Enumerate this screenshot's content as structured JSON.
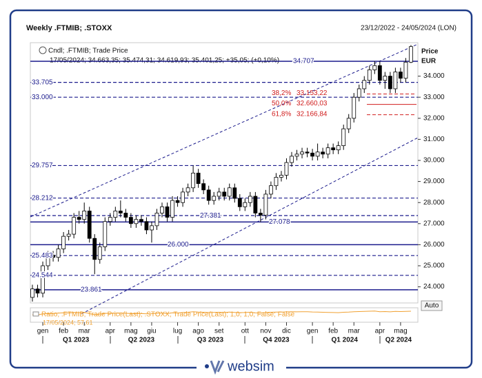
{
  "chart_data": {
    "type": "candlestick",
    "title": "Weekly .FTMIB; .STOXX",
    "date_range": "23/12/2022 - 24/05/2024 (LON)",
    "legend_title": "Cndl; .FTMIB; Trade Price",
    "legend_values": "17/05/2024; 34.663,35; 35.474,31; 34.619,93; 35.401,25; +35,05; (+0,10%)",
    "axis_label": "Price",
    "currency": "EUR",
    "auto_button": "Auto",
    "up_color": "#ffffff",
    "down_color": "#000000",
    "wick_color": "#000000",
    "open": [
      23500,
      23900,
      23700,
      25000,
      25500,
      25400,
      25800,
      26400,
      26500,
      27300,
      27200,
      27600,
      26300,
      25300,
      25900,
      27100,
      27300,
      27600,
      27500,
      27300,
      27000,
      27200,
      27100,
      26700,
      26900,
      27500,
      27800,
      27300,
      28100,
      28000,
      28500,
      28700,
      29400,
      28900,
      28600,
      28100,
      28300,
      28500,
      28300,
      28700,
      28200,
      27800,
      28000,
      28300,
      27500,
      27400,
      28400,
      28800,
      29200,
      29300,
      29900,
      30200,
      30300,
      30400,
      30350,
      30200,
      30400,
      30300,
      30600,
      30500,
      30700,
      31500,
      32000,
      33000,
      33400,
      33800,
      34300,
      34500,
      33800,
      34000,
      33400,
      34200,
      33900,
      34663.35
    ],
    "high": [
      24100,
      24100,
      25200,
      25700,
      25700,
      26000,
      26600,
      26700,
      27500,
      27600,
      28000,
      27800,
      26500,
      26100,
      27300,
      27500,
      27800,
      28100,
      27700,
      27500,
      27400,
      27400,
      27300,
      27100,
      27700,
      28000,
      28000,
      28300,
      28300,
      28700,
      28900,
      29757,
      29600,
      29100,
      28800,
      28500,
      28700,
      28700,
      28900,
      28900,
      28400,
      28200,
      28500,
      28500,
      27700,
      28600,
      29000,
      29400,
      29500,
      30100,
      30400,
      30500,
      30600,
      30600,
      30550,
      30800,
      30600,
      30800,
      30800,
      30900,
      31700,
      32200,
      33200,
      33600,
      34000,
      34500,
      34707,
      34700,
      34200,
      34200,
      34400,
      34400,
      34860,
      35474.31
    ],
    "low": [
      23300,
      23500,
      23500,
      24800,
      25200,
      25200,
      25600,
      26200,
      26300,
      27000,
      27000,
      26100,
      24600,
      25100,
      25700,
      26900,
      27100,
      27300,
      27100,
      26800,
      26800,
      26900,
      26500,
      26100,
      26700,
      27300,
      27100,
      27100,
      27800,
      27800,
      28300,
      28500,
      28700,
      28400,
      27900,
      27900,
      28100,
      28100,
      28100,
      28000,
      27600,
      27600,
      27800,
      27300,
      27078,
      27200,
      28200,
      28600,
      29000,
      29100,
      29700,
      30000,
      30100,
      30150,
      30000,
      30000,
      30100,
      30100,
      30300,
      30300,
      30500,
      31300,
      31800,
      32800,
      33200,
      33600,
      34100,
      33600,
      33400,
      33200,
      33200,
      33700,
      33700,
      34619.93
    ],
    "close": [
      23900,
      23700,
      25000,
      25500,
      25400,
      25800,
      26400,
      26500,
      27300,
      27200,
      27600,
      26300,
      25300,
      25900,
      27100,
      27300,
      27600,
      27500,
      27300,
      27000,
      27200,
      27100,
      26700,
      26900,
      27500,
      27800,
      27300,
      28100,
      28000,
      28500,
      28700,
      29400,
      28900,
      28600,
      28100,
      28300,
      28500,
      28300,
      28700,
      28200,
      27800,
      28000,
      28300,
      27500,
      27400,
      28400,
      28800,
      29200,
      29300,
      29900,
      30200,
      30300,
      30400,
      30350,
      30200,
      30400,
      30300,
      30600,
      30500,
      30700,
      31500,
      32000,
      33000,
      33400,
      33800,
      34300,
      34500,
      33800,
      34000,
      33400,
      34200,
      33900,
      34663.35,
      35401.25
    ],
    "ylim": [
      23235,
      35588
    ],
    "yticks": [
      {
        "value": 24000,
        "label": "24.000"
      },
      {
        "value": 25000,
        "label": "25.000"
      },
      {
        "value": 26000,
        "label": "26.000"
      },
      {
        "value": 27000,
        "label": "27.000"
      },
      {
        "value": 28000,
        "label": "28.000"
      },
      {
        "value": 29000,
        "label": "29.000"
      },
      {
        "value": 30000,
        "label": "30.000"
      },
      {
        "value": 31000,
        "label": "31.000"
      },
      {
        "value": 32000,
        "label": "32.000"
      },
      {
        "value": 33000,
        "label": "33.000"
      },
      {
        "value": 34000,
        "label": "34.000"
      }
    ],
    "month_ticks": [
      {
        "value": 2,
        "label": "gen"
      },
      {
        "value": 6,
        "label": "feb"
      },
      {
        "value": 10,
        "label": "mar"
      },
      {
        "value": 15,
        "label": "apr"
      },
      {
        "value": 19,
        "label": "mag"
      },
      {
        "value": 23,
        "label": "giu"
      },
      {
        "value": 28,
        "label": "lug"
      },
      {
        "value": 32,
        "label": "ago"
      },
      {
        "value": 36,
        "label": "set"
      },
      {
        "value": 41,
        "label": "ott"
      },
      {
        "value": 45,
        "label": "nov"
      },
      {
        "value": 49,
        "label": "dic"
      },
      {
        "value": 54,
        "label": "gen"
      },
      {
        "value": 58,
        "label": "feb"
      },
      {
        "value": 62,
        "label": "mar"
      },
      {
        "value": 67,
        "label": "apr"
      },
      {
        "value": 71,
        "label": "mag"
      }
    ],
    "quarter_labels": [
      {
        "value": 8.4,
        "label": "Q1 2023"
      },
      {
        "value": 21,
        "label": "Q2 2023"
      },
      {
        "value": 34.3,
        "label": "Q3 2023"
      },
      {
        "value": 47,
        "label": "Q4 2023"
      },
      {
        "value": 60.2,
        "label": "Q1 2024"
      },
      {
        "value": 70.6,
        "label": "Q2 2024"
      }
    ],
    "levels": [
      {
        "value": 34707,
        "label": "34.707",
        "dashed": false
      },
      {
        "value": 33705,
        "label": "33.705",
        "dashed": true
      },
      {
        "value": 33000,
        "label": "33.000",
        "dashed": true
      },
      {
        "value": 29757,
        "label": "29.757",
        "dashed": true
      },
      {
        "value": 28212,
        "label": "28.212",
        "dashed": true
      },
      {
        "value": 27381,
        "label": "27.381",
        "dashed": true
      },
      {
        "value": 27078,
        "label": "27.078",
        "dashed": false
      },
      {
        "value": 26000,
        "label": "26.000",
        "dashed": false
      },
      {
        "value": 25483,
        "label": "25.483",
        "dashed": true
      },
      {
        "value": 24544,
        "label": "24.544",
        "dashed": true
      },
      {
        "value": 23861,
        "label": "23.861",
        "dashed": false
      }
    ],
    "level_color": "#1a1a8c",
    "fib_color": "#d01c1c",
    "fib_levels": [
      {
        "pct": "38,2%",
        "value": 33153.22,
        "label": "33.153,22",
        "dashed": true
      },
      {
        "pct": "50,0%",
        "value": 32660.03,
        "label": "32.660,03",
        "dashed": false
      },
      {
        "pct": "61,8%",
        "value": 32166.84,
        "label": "32.166,84",
        "dashed": true
      }
    ],
    "ratio": {
      "label": "Ratio; .FTMIB; Trade Price(Last); .STOXX; Trade Price(Last); 1,0; 1,0; False; False",
      "last": "17/05/2024; 57,61",
      "color": "#f0a030",
      "ylim": [
        50,
        60
      ],
      "values": [
        55.2,
        55.0,
        55.8,
        56.0,
        56.1,
        56.3,
        56.5,
        56.4,
        56.8,
        56.6,
        56.9,
        55.9,
        55.3,
        55.6,
        56.2,
        56.1,
        56.3,
        56.4,
        56.2,
        56.0,
        56.1,
        56.0,
        55.8,
        55.9,
        56.2,
        56.4,
        56.0,
        56.5,
        56.4,
        56.7,
        56.9,
        57.3,
        57.0,
        56.9,
        56.7,
        56.8,
        56.9,
        56.7,
        57.0,
        56.8,
        56.6,
        56.7,
        56.9,
        56.5,
        56.4,
        56.8,
        56.9,
        57.0,
        57.0,
        57.2,
        57.3,
        57.2,
        57.3,
        57.3,
        57.1,
        57.0,
        56.9,
        56.8,
        56.7,
        56.6,
        56.9,
        57.0,
        57.3,
        57.4,
        57.5,
        57.6,
        57.7,
        57.3,
        57.4,
        57.2,
        57.5,
        57.4,
        57.5,
        57.61
      ]
    }
  },
  "footer": {
    "logo": "websim"
  }
}
